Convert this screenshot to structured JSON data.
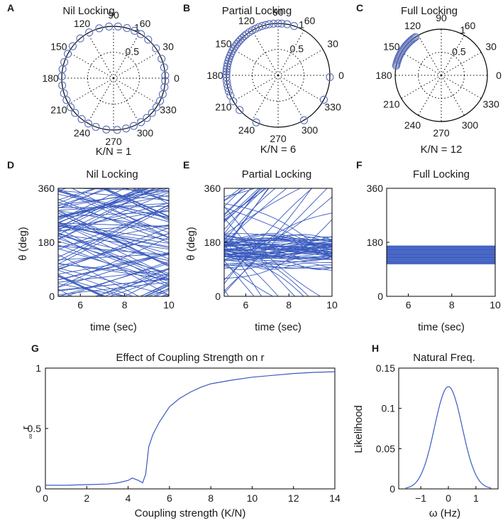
{
  "panels": {
    "A": {
      "letter": "A",
      "title": "Nil Locking",
      "caption": "K/N = 1"
    },
    "B": {
      "letter": "B",
      "title": "Partial Locking",
      "caption": "K/N = 6"
    },
    "C": {
      "letter": "C",
      "title": "Full Locking",
      "caption": "K/N = 12"
    },
    "D": {
      "letter": "D",
      "title": "Nil Locking",
      "xlabel": "time (sec)",
      "ylabel": "θ (deg)"
    },
    "E": {
      "letter": "E",
      "title": "Partial Locking",
      "xlabel": "time (sec)",
      "ylabel": "θ (deg)"
    },
    "F": {
      "letter": "F",
      "title": "Full Locking",
      "xlabel": "time (sec)",
      "ylabel": "θ (deg)"
    },
    "G": {
      "letter": "G",
      "title": "Effect of Coupling Strength on r",
      "xlabel": "Coupling strength (K/N)",
      "ylabel": "r",
      "ylabel_sub": "∞"
    },
    "H": {
      "letter": "H",
      "title": "Natural Freq.",
      "xlabel": "ω (Hz)",
      "ylabel": "Likelihood"
    }
  },
  "chart_data": [
    {
      "id": "A",
      "type": "scatter",
      "coordinate": "polar",
      "angle_ticks": [
        "90",
        "60",
        "30",
        "0",
        "330",
        "300",
        "270",
        "240",
        "210",
        "180",
        "150",
        "120"
      ],
      "radius_ticks": [
        "0.5",
        "1"
      ],
      "oscillator_angles_deg": [
        3,
        12,
        22,
        35,
        48,
        58,
        66,
        75,
        85,
        95,
        106,
        118,
        130,
        142,
        152,
        162,
        170,
        178,
        188,
        197,
        205,
        214,
        222,
        232,
        241,
        250,
        262,
        274,
        284,
        293,
        302,
        310,
        318,
        326,
        334,
        342,
        350,
        357
      ]
    },
    {
      "id": "B",
      "type": "scatter",
      "coordinate": "polar",
      "angle_ticks": [
        "90",
        "60",
        "30",
        "0",
        "330",
        "300",
        "270",
        "240",
        "210",
        "180",
        "150",
        "120"
      ],
      "radius_ticks": [
        "0.5",
        "1"
      ],
      "oscillator_angles_deg": [
        72,
        80,
        86,
        90,
        95,
        100,
        104,
        108,
        112,
        116,
        120,
        124,
        128,
        131,
        134,
        137,
        140,
        143,
        146,
        149,
        152,
        155,
        158,
        161,
        164,
        167,
        170,
        173,
        176,
        179,
        182,
        186,
        190,
        194,
        198,
        203,
        210,
        222,
        245,
        300,
        332,
        358
      ]
    },
    {
      "id": "C",
      "type": "scatter",
      "coordinate": "polar",
      "angle_ticks": [
        "90",
        "60",
        "30",
        "0",
        "330",
        "300",
        "270",
        "240",
        "210",
        "180",
        "150",
        "120"
      ],
      "radius_ticks": [
        "0.5",
        "1"
      ],
      "oscillator_angles_deg": [
        124,
        126,
        128,
        130,
        132,
        134,
        136,
        138,
        140,
        142,
        144,
        146,
        148,
        150,
        152,
        154,
        156,
        158,
        160,
        162,
        164,
        166,
        168
      ]
    },
    {
      "id": "D",
      "type": "line",
      "xlim": [
        5,
        10
      ],
      "ylim": [
        0,
        360
      ],
      "xticks": [
        "6",
        "8",
        "10"
      ],
      "yticks": [
        "0",
        "180",
        "360"
      ],
      "regime": "nil",
      "n_trajectories": 90
    },
    {
      "id": "E",
      "type": "line",
      "xlim": [
        5,
        10
      ],
      "ylim": [
        0,
        360
      ],
      "xticks": [
        "6",
        "8",
        "10"
      ],
      "yticks": [
        "0",
        "180",
        "360"
      ],
      "regime": "partial",
      "n_trajectories": 90,
      "locked_band_deg": [
        95,
        200
      ]
    },
    {
      "id": "F",
      "type": "line",
      "xlim": [
        5,
        10
      ],
      "ylim": [
        0,
        360
      ],
      "xticks": [
        "6",
        "8",
        "10"
      ],
      "yticks": [
        "0",
        "180",
        "360"
      ],
      "regime": "full",
      "locked_band_deg": [
        108,
        168
      ]
    },
    {
      "id": "G",
      "type": "line",
      "xlim": [
        0,
        14
      ],
      "ylim": [
        0,
        1
      ],
      "xticks": [
        "0",
        "2",
        "4",
        "6",
        "8",
        "10",
        "12",
        "14"
      ],
      "yticks": [
        "0",
        "0.5",
        "1"
      ],
      "x": [
        0,
        1,
        2,
        3,
        3.5,
        4.0,
        4.2,
        4.5,
        4.7,
        4.85,
        5.0,
        5.2,
        5.5,
        6.0,
        6.5,
        7.0,
        7.5,
        8.0,
        9.0,
        10.0,
        11.0,
        12.0,
        13.0,
        14.0
      ],
      "y": [
        0.03,
        0.03,
        0.035,
        0.04,
        0.05,
        0.07,
        0.09,
        0.07,
        0.05,
        0.12,
        0.35,
        0.45,
        0.55,
        0.68,
        0.75,
        0.8,
        0.84,
        0.87,
        0.9,
        0.925,
        0.94,
        0.955,
        0.965,
        0.97
      ]
    },
    {
      "id": "H",
      "type": "line",
      "xlim": [
        -1.8,
        1.8
      ],
      "ylim": [
        0,
        0.15
      ],
      "xticks": [
        "-1",
        "0",
        "1"
      ],
      "yticks": [
        "0",
        "0.05",
        "0.1",
        "0.15"
      ],
      "distribution": "gaussian",
      "mean": 0,
      "sd": 0.5,
      "peak": 0.127
    }
  ]
}
